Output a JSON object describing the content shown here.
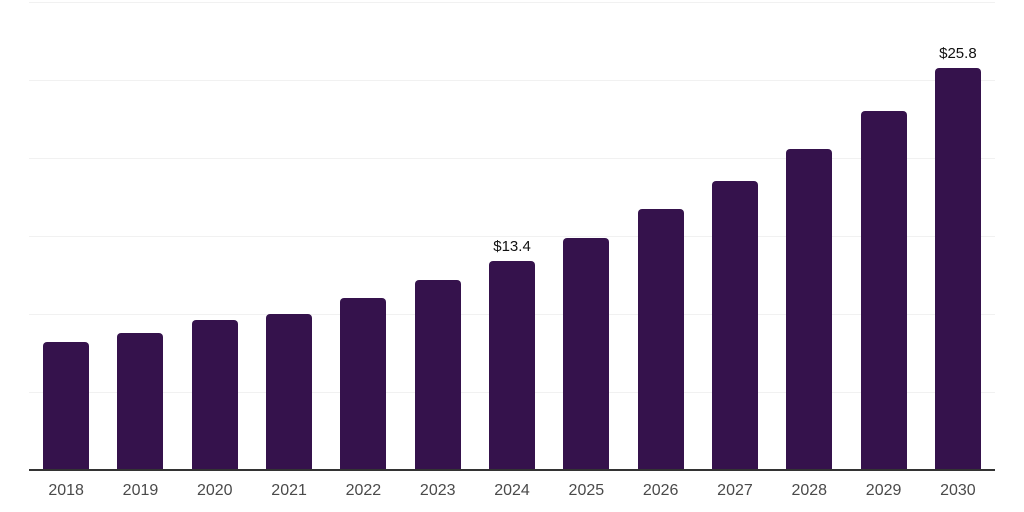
{
  "chart_data": {
    "type": "bar",
    "title": "",
    "xlabel": "",
    "ylabel": "",
    "categories": [
      "2018",
      "2019",
      "2020",
      "2021",
      "2022",
      "2023",
      "2024",
      "2025",
      "2026",
      "2027",
      "2028",
      "2029",
      "2030"
    ],
    "values": [
      8.2,
      8.8,
      9.6,
      10.0,
      11.0,
      12.2,
      13.4,
      14.9,
      16.7,
      18.5,
      20.6,
      23.0,
      25.8
    ],
    "bar_labels": [
      "",
      "",
      "",
      "",
      "",
      "",
      "$13.4",
      "",
      "",
      "",
      "",
      "",
      "$25.8"
    ],
    "ylim": [
      0,
      30
    ],
    "gridline_values": [
      5,
      10,
      15,
      20,
      25,
      30
    ],
    "grid": true,
    "legend": false,
    "colors": {
      "bar": "#35124C",
      "gridline": "#f1f1f1",
      "axis_line": "#333333",
      "tick_label": "#4a4a4a",
      "value_label": "#111111",
      "background": "#ffffff"
    }
  }
}
